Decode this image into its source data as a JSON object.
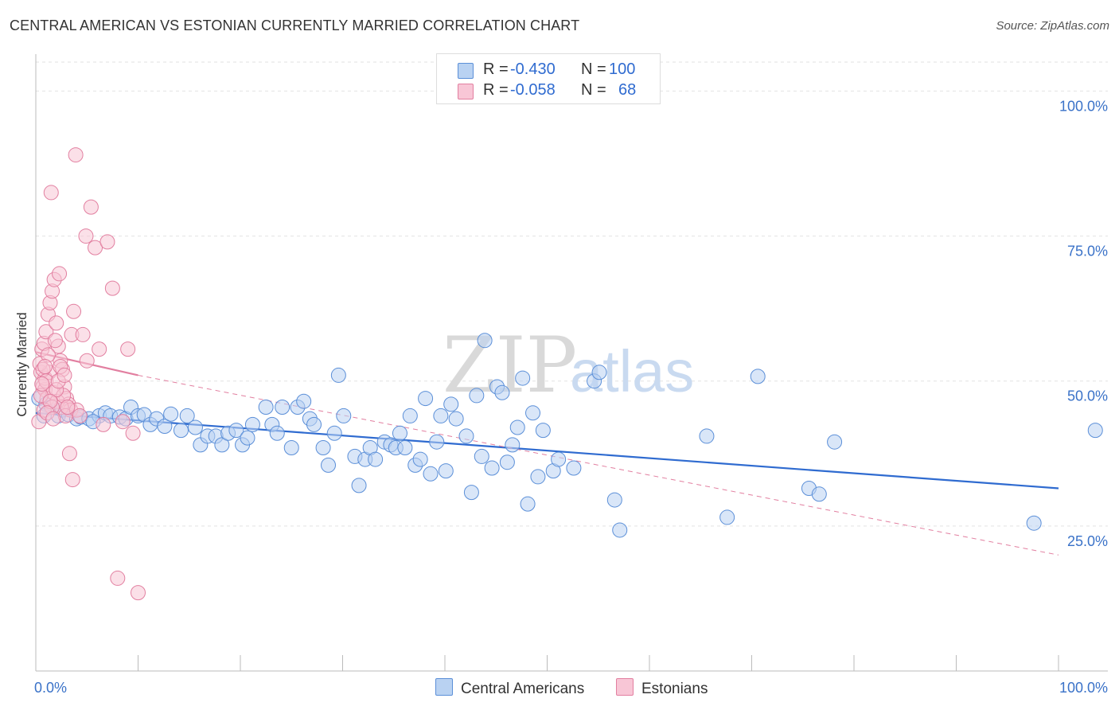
{
  "title": "CENTRAL AMERICAN VS ESTONIAN CURRENTLY MARRIED CORRELATION CHART",
  "source": "Source: ZipAtlas.com",
  "watermark": {
    "zip": "ZIP",
    "atlas": "atlas"
  },
  "legend": {
    "rows": [
      {
        "r_label": "R =",
        "r_value": "-0.430",
        "n_label": "N =",
        "n_value": "100",
        "color": "#5b8fd8",
        "fill": "#b9d2f2"
      },
      {
        "r_label": "R =",
        "r_value": "-0.058",
        "n_label": "N =",
        "n_value": "68",
        "color": "#e27fa0",
        "fill": "#f8c6d6"
      }
    ]
  },
  "bottom_legend": [
    {
      "label": "Central Americans",
      "fill": "#b9d2f2",
      "stroke": "#5b8fd8"
    },
    {
      "label": "Estonians",
      "fill": "#f8c6d6",
      "stroke": "#e27fa0"
    }
  ],
  "chart_data": {
    "type": "scatter",
    "title": "CENTRAL AMERICAN VS ESTONIAN CURRENTLY MARRIED CORRELATION CHART",
    "xlabel": "",
    "ylabel": "Currently Married",
    "xlim": [
      0,
      100
    ],
    "ylim": [
      0,
      105
    ],
    "x_tick_labels": [
      "0.0%",
      "100.0%"
    ],
    "y_ticks": [
      {
        "value": 25,
        "label": "25.0%"
      },
      {
        "value": 50,
        "label": "50.0%"
      },
      {
        "value": 75,
        "label": "75.0%"
      },
      {
        "value": 100,
        "label": "100.0%"
      }
    ],
    "grid": true,
    "series": [
      {
        "name": "Central Americans",
        "color": "#5b8fd8",
        "fill": "#b9d2f2",
        "points": [
          [
            0.3,
            47.0
          ],
          [
            1.0,
            46.0
          ],
          [
            1.5,
            45.5
          ],
          [
            2.2,
            44.0
          ],
          [
            2.6,
            45.0
          ],
          [
            3.2,
            44.2
          ],
          [
            4.0,
            43.5
          ],
          [
            4.4,
            43.8
          ],
          [
            5.2,
            43.5
          ],
          [
            6.2,
            44.0
          ],
          [
            6.8,
            44.5
          ],
          [
            7.3,
            44.0
          ],
          [
            8.2,
            43.8
          ],
          [
            8.8,
            43.5
          ],
          [
            9.3,
            45.5
          ],
          [
            10.0,
            44.0
          ],
          [
            10.6,
            44.2
          ],
          [
            11.2,
            42.5
          ],
          [
            11.8,
            43.5
          ],
          [
            12.6,
            42.2
          ],
          [
            13.2,
            44.3
          ],
          [
            14.2,
            41.5
          ],
          [
            14.8,
            44.0
          ],
          [
            15.6,
            42.0
          ],
          [
            16.1,
            39.0
          ],
          [
            16.8,
            40.5
          ],
          [
            17.6,
            40.5
          ],
          [
            18.2,
            39.0
          ],
          [
            18.8,
            41.0
          ],
          [
            19.6,
            41.5
          ],
          [
            20.2,
            39.0
          ],
          [
            20.7,
            40.2
          ],
          [
            21.2,
            42.5
          ],
          [
            22.5,
            45.5
          ],
          [
            23.1,
            42.5
          ],
          [
            23.6,
            41.0
          ],
          [
            24.1,
            45.5
          ],
          [
            25.0,
            38.5
          ],
          [
            25.6,
            45.5
          ],
          [
            26.2,
            46.5
          ],
          [
            26.8,
            43.5
          ],
          [
            27.2,
            42.5
          ],
          [
            28.1,
            38.5
          ],
          [
            28.6,
            35.5
          ],
          [
            29.2,
            41.0
          ],
          [
            29.6,
            51.0
          ],
          [
            30.1,
            44.0
          ],
          [
            31.2,
            37.0
          ],
          [
            31.6,
            32.0
          ],
          [
            32.2,
            36.5
          ],
          [
            32.7,
            38.5
          ],
          [
            33.2,
            36.5
          ],
          [
            34.1,
            39.5
          ],
          [
            34.7,
            39.0
          ],
          [
            35.2,
            38.5
          ],
          [
            35.6,
            41.0
          ],
          [
            36.1,
            38.5
          ],
          [
            36.6,
            44.0
          ],
          [
            37.1,
            35.5
          ],
          [
            37.6,
            36.5
          ],
          [
            38.1,
            47.0
          ],
          [
            38.6,
            34.0
          ],
          [
            39.2,
            39.5
          ],
          [
            39.6,
            44.0
          ],
          [
            40.1,
            34.5
          ],
          [
            40.6,
            46.0
          ],
          [
            41.1,
            43.5
          ],
          [
            42.1,
            40.5
          ],
          [
            42.6,
            30.8
          ],
          [
            43.1,
            47.5
          ],
          [
            43.6,
            37.0
          ],
          [
            44.6,
            35.0
          ],
          [
            45.1,
            49.0
          ],
          [
            45.6,
            48.0
          ],
          [
            46.1,
            36.0
          ],
          [
            46.6,
            39.0
          ],
          [
            47.1,
            42.0
          ],
          [
            47.6,
            50.5
          ],
          [
            48.1,
            28.8
          ],
          [
            48.6,
            44.5
          ],
          [
            49.1,
            33.5
          ],
          [
            49.6,
            41.5
          ],
          [
            50.6,
            34.5
          ],
          [
            51.1,
            36.5
          ],
          [
            52.6,
            35.0
          ],
          [
            54.6,
            50.0
          ],
          [
            55.1,
            51.5
          ],
          [
            56.6,
            29.5
          ],
          [
            57.1,
            24.3
          ],
          [
            65.6,
            40.5
          ],
          [
            67.6,
            26.5
          ],
          [
            70.6,
            50.8
          ],
          [
            75.6,
            31.5
          ],
          [
            76.6,
            30.5
          ],
          [
            78.1,
            39.5
          ],
          [
            43.9,
            57.0
          ],
          [
            97.6,
            25.5
          ],
          [
            103.6,
            41.5
          ],
          [
            0.8,
            44.0
          ],
          [
            5.6,
            43.0
          ]
        ]
      },
      {
        "name": "Estonians",
        "color": "#e27fa0",
        "fill": "#f8c6d6",
        "points": [
          [
            0.3,
            43.0
          ],
          [
            0.5,
            51.5
          ],
          [
            0.7,
            49.0
          ],
          [
            0.9,
            48.5
          ],
          [
            1.1,
            47.0
          ],
          [
            0.6,
            55.5
          ],
          [
            0.8,
            56.5
          ],
          [
            1.0,
            58.5
          ],
          [
            1.2,
            61.5
          ],
          [
            1.4,
            63.5
          ],
          [
            1.6,
            65.5
          ],
          [
            1.8,
            67.5
          ],
          [
            2.0,
            60.0
          ],
          [
            2.2,
            56.0
          ],
          [
            2.4,
            53.5
          ],
          [
            2.6,
            52.0
          ],
          [
            2.8,
            49.0
          ],
          [
            3.0,
            47.0
          ],
          [
            3.2,
            46.0
          ],
          [
            3.4,
            45.0
          ],
          [
            0.9,
            50.5
          ],
          [
            1.3,
            51.5
          ],
          [
            1.7,
            48.0
          ],
          [
            2.1,
            46.5
          ],
          [
            2.5,
            45.5
          ],
          [
            2.9,
            44.0
          ],
          [
            3.5,
            58.0
          ],
          [
            3.7,
            62.0
          ],
          [
            4.0,
            45.0
          ],
          [
            4.3,
            44.0
          ],
          [
            4.6,
            58.0
          ],
          [
            5.0,
            53.5
          ],
          [
            5.4,
            80.0
          ],
          [
            5.8,
            73.0
          ],
          [
            6.2,
            55.5
          ],
          [
            6.6,
            42.5
          ],
          [
            7.0,
            74.0
          ],
          [
            7.5,
            66.0
          ],
          [
            8.0,
            16.0
          ],
          [
            8.5,
            43.0
          ],
          [
            9.0,
            55.5
          ],
          [
            9.5,
            41.0
          ],
          [
            10.0,
            13.5
          ],
          [
            3.9,
            89.0
          ],
          [
            1.5,
            82.5
          ],
          [
            4.9,
            75.0
          ],
          [
            2.3,
            68.5
          ],
          [
            0.4,
            53.0
          ],
          [
            0.7,
            52.0
          ],
          [
            1.0,
            50.0
          ],
          [
            1.9,
            57.0
          ],
          [
            2.7,
            47.5
          ],
          [
            3.3,
            37.5
          ],
          [
            3.6,
            33.0
          ],
          [
            0.5,
            47.5
          ],
          [
            1.6,
            45.5
          ],
          [
            2.0,
            48.5
          ],
          [
            2.4,
            52.5
          ],
          [
            1.2,
            54.5
          ],
          [
            0.8,
            45.0
          ],
          [
            0.6,
            49.5
          ],
          [
            1.4,
            46.5
          ],
          [
            2.2,
            50.0
          ],
          [
            3.1,
            45.5
          ],
          [
            1.1,
            44.5
          ],
          [
            0.9,
            52.5
          ],
          [
            2.8,
            51.0
          ],
          [
            1.7,
            43.5
          ]
        ]
      }
    ],
    "trend_lines": [
      {
        "series": "Central Americans",
        "style": "solid",
        "x": [
          0,
          100
        ],
        "y": [
          44.5,
          31.5
        ]
      },
      {
        "series": "Estonians",
        "style": "solid",
        "x": [
          0,
          10
        ],
        "y": [
          55.0,
          51.0
        ]
      },
      {
        "series": "Estonians",
        "style": "dashed",
        "x": [
          10,
          100
        ],
        "y": [
          51.0,
          20.0
        ]
      }
    ],
    "legend_placement": "top-center"
  }
}
